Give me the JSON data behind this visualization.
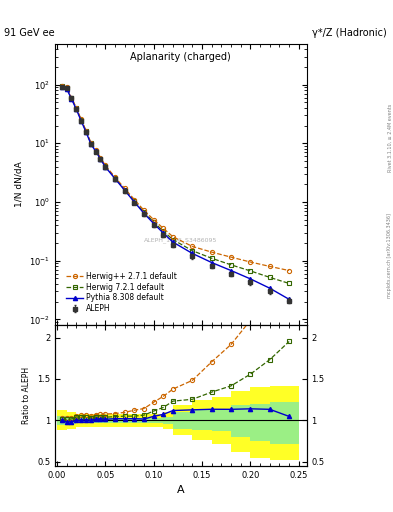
{
  "title_left": "91 GeV ee",
  "title_right": "γ*/Z (Hadronic)",
  "plot_title": "Aplanarity (charged)",
  "xlabel": "A",
  "ylabel_main": "1/N dN/dA",
  "ylabel_ratio": "Ratio to ALEPH",
  "watermark": "ALEPH_1996_S3486095",
  "right_label1": "Rivet 3.1.10, ≥ 2.4M events",
  "right_label2": "mcplots.cern.ch [arXiv:1306.3436]",
  "aleph_x": [
    0.005,
    0.01,
    0.015,
    0.02,
    0.025,
    0.03,
    0.035,
    0.04,
    0.045,
    0.05,
    0.06,
    0.07,
    0.08,
    0.09,
    0.1,
    0.11,
    0.12,
    0.14,
    0.16,
    0.18,
    0.2,
    0.22,
    0.24
  ],
  "aleph_y": [
    92.0,
    87.0,
    58.0,
    38.0,
    24.0,
    15.5,
    9.8,
    7.2,
    5.3,
    3.9,
    2.45,
    1.55,
    0.98,
    0.63,
    0.41,
    0.275,
    0.185,
    0.118,
    0.082,
    0.06,
    0.043,
    0.03,
    0.021
  ],
  "aleph_yerr": [
    4.0,
    4.0,
    3.0,
    2.0,
    1.2,
    0.8,
    0.5,
    0.4,
    0.3,
    0.22,
    0.15,
    0.1,
    0.07,
    0.05,
    0.03,
    0.022,
    0.015,
    0.01,
    0.007,
    0.005,
    0.004,
    0.003,
    0.002
  ],
  "herwig_pp_x": [
    0.005,
    0.01,
    0.015,
    0.02,
    0.025,
    0.03,
    0.035,
    0.04,
    0.045,
    0.05,
    0.06,
    0.07,
    0.08,
    0.09,
    0.1,
    0.11,
    0.12,
    0.14,
    0.16,
    0.18,
    0.2,
    0.22,
    0.24
  ],
  "herwig_pp_y": [
    95.0,
    90.0,
    60.0,
    40.0,
    25.5,
    16.5,
    10.3,
    7.7,
    5.7,
    4.2,
    2.65,
    1.7,
    1.1,
    0.72,
    0.5,
    0.355,
    0.255,
    0.175,
    0.14,
    0.115,
    0.095,
    0.08,
    0.068
  ],
  "herwig7_x": [
    0.005,
    0.01,
    0.015,
    0.02,
    0.025,
    0.03,
    0.035,
    0.04,
    0.045,
    0.05,
    0.06,
    0.07,
    0.08,
    0.09,
    0.1,
    0.11,
    0.12,
    0.14,
    0.16,
    0.18,
    0.2,
    0.22,
    0.24
  ],
  "herwig7_y": [
    93.0,
    88.0,
    59.0,
    39.5,
    25.0,
    16.2,
    10.1,
    7.5,
    5.5,
    4.05,
    2.56,
    1.63,
    1.03,
    0.67,
    0.456,
    0.318,
    0.228,
    0.148,
    0.11,
    0.085,
    0.067,
    0.052,
    0.041
  ],
  "pythia_x": [
    0.005,
    0.01,
    0.015,
    0.02,
    0.025,
    0.03,
    0.035,
    0.04,
    0.045,
    0.05,
    0.06,
    0.07,
    0.08,
    0.09,
    0.1,
    0.11,
    0.12,
    0.14,
    0.16,
    0.18,
    0.2,
    0.22,
    0.24
  ],
  "pythia_y": [
    92.0,
    85.0,
    57.0,
    38.0,
    24.0,
    15.6,
    9.8,
    7.3,
    5.4,
    3.95,
    2.5,
    1.58,
    1.0,
    0.64,
    0.43,
    0.295,
    0.207,
    0.133,
    0.093,
    0.068,
    0.049,
    0.034,
    0.022
  ],
  "color_aleph": "#333333",
  "color_herwig_pp": "#cc6600",
  "color_herwig7": "#336600",
  "color_pythia": "#0000cc",
  "band_x_edges": [
    0.0,
    0.005,
    0.01,
    0.015,
    0.02,
    0.025,
    0.03,
    0.035,
    0.04,
    0.045,
    0.05,
    0.06,
    0.07,
    0.08,
    0.09,
    0.1,
    0.11,
    0.12,
    0.14,
    0.16,
    0.18,
    0.2,
    0.22,
    0.25
  ],
  "band_green_lo": [
    0.95,
    0.95,
    0.96,
    0.96,
    0.97,
    0.97,
    0.97,
    0.97,
    0.97,
    0.97,
    0.97,
    0.97,
    0.97,
    0.97,
    0.97,
    0.97,
    0.96,
    0.9,
    0.88,
    0.87,
    0.8,
    0.75,
    0.72
  ],
  "band_green_hi": [
    1.05,
    1.05,
    1.04,
    1.04,
    1.03,
    1.03,
    1.03,
    1.03,
    1.03,
    1.03,
    1.03,
    1.03,
    1.03,
    1.03,
    1.03,
    1.03,
    1.04,
    1.1,
    1.12,
    1.13,
    1.18,
    1.2,
    1.22
  ],
  "band_yellow_lo": [
    0.88,
    0.88,
    0.9,
    0.9,
    0.92,
    0.92,
    0.92,
    0.92,
    0.92,
    0.92,
    0.92,
    0.92,
    0.92,
    0.92,
    0.92,
    0.92,
    0.9,
    0.82,
    0.76,
    0.72,
    0.62,
    0.55,
    0.52
  ],
  "band_yellow_hi": [
    1.12,
    1.12,
    1.1,
    1.1,
    1.08,
    1.08,
    1.08,
    1.08,
    1.08,
    1.08,
    1.08,
    1.08,
    1.08,
    1.08,
    1.08,
    1.08,
    1.1,
    1.18,
    1.24,
    1.28,
    1.35,
    1.4,
    1.42
  ],
  "ylim_main": [
    0.008,
    500
  ],
  "xlim": [
    -0.002,
    0.258
  ],
  "ylim_ratio": [
    0.45,
    2.15
  ],
  "yticks_ratio": [
    0.5,
    1.0,
    1.5,
    2.0
  ],
  "ytick_labels_ratio": [
    "0.5",
    "1",
    "1.5",
    "2"
  ]
}
